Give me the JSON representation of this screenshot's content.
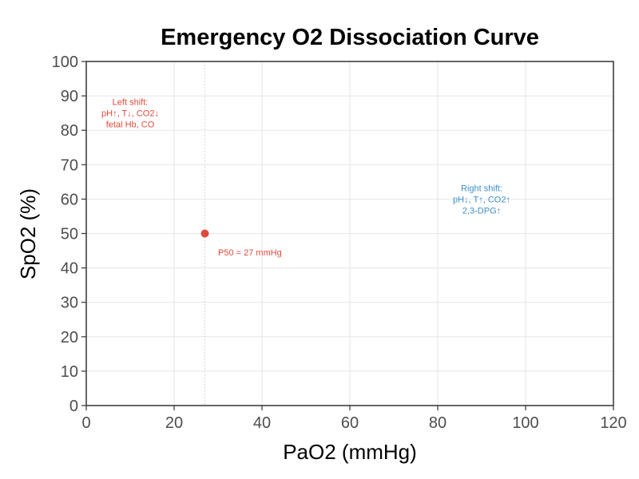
{
  "chart_data": {
    "type": "scatter",
    "title": "Emergency O2 Dissociation Curve",
    "xlabel": "PaO2 (mmHg)",
    "ylabel": "SpO2 (%)",
    "xlim": [
      0,
      120
    ],
    "ylim": [
      0,
      100
    ],
    "x_ticks": [
      0,
      20,
      40,
      60,
      80,
      100,
      120
    ],
    "y_ticks": [
      0,
      10,
      20,
      30,
      40,
      50,
      60,
      70,
      80,
      90,
      100
    ],
    "grid": true,
    "points": [
      {
        "x": 27,
        "y": 50,
        "color": "#e04a3c"
      }
    ],
    "reference_lines": [
      {
        "axis": "x",
        "value": 27,
        "style": "dotted",
        "color": "#cccccc"
      }
    ],
    "annotations": [
      {
        "x": 10,
        "y": 85,
        "lines": [
          "Left shift:",
          "pH↑, T↓, CO2↓",
          "fetal Hb, CO"
        ],
        "color": "#e04a3c"
      },
      {
        "x": 90,
        "y": 60,
        "lines": [
          "Right shift:",
          "pH↓, T↑, CO2↑",
          "2,3-DPG↑"
        ],
        "color": "#3c8fcc"
      },
      {
        "x": 30,
        "y": 44.5,
        "anchor": "start",
        "lines": [
          "P50 = 27 mmHg"
        ],
        "color": "#e04a3c"
      }
    ]
  }
}
